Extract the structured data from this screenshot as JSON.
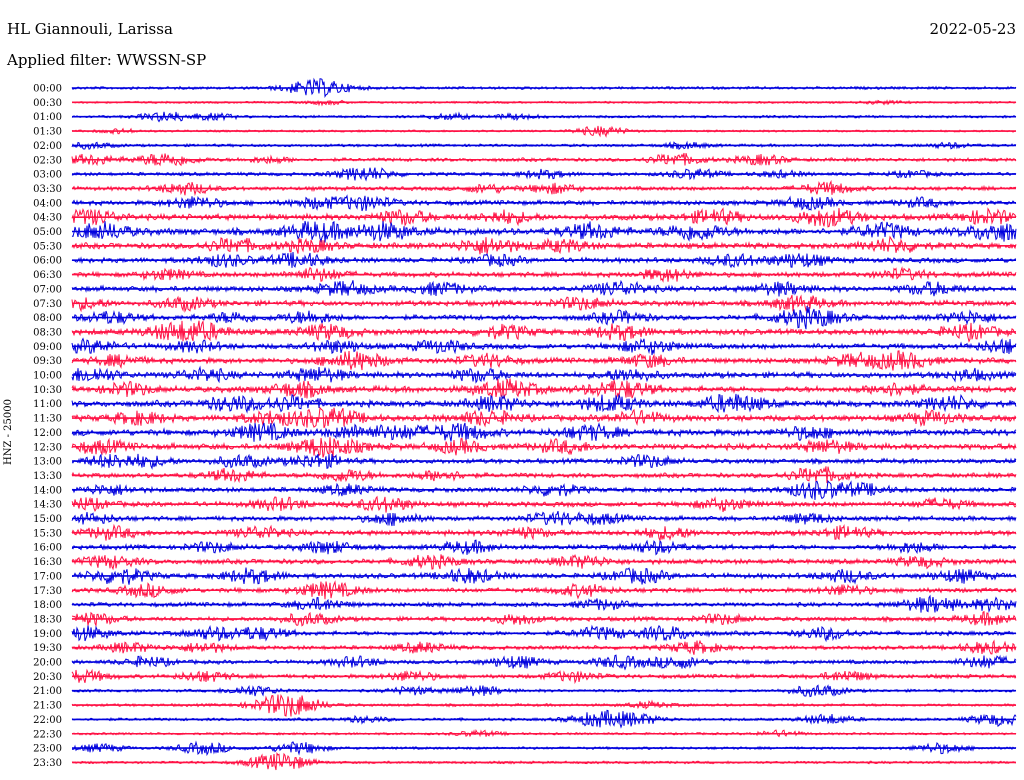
{
  "header": {
    "station": "HL Giannouli, Larissa",
    "date": "2022-05-23",
    "filter": "Applied filter: WWSSN-SP"
  },
  "chart_data": {
    "type": "line",
    "title": "HL Giannouli, Larissa",
    "ylabel": "HNZ - 25000",
    "line_colors": [
      "#0000dd",
      "#ff1144"
    ],
    "rows": [
      {
        "label": "00:00",
        "activity": 0.15,
        "events": [
          [
            0.26,
            0.9
          ]
        ]
      },
      {
        "label": "00:30",
        "activity": 0.05,
        "events": [
          [
            0.27,
            0.2
          ],
          [
            0.86,
            0.15
          ]
        ]
      },
      {
        "label": "01:00",
        "activity": 0.12,
        "events": [
          [
            0.1,
            0.5
          ],
          [
            0.15,
            0.3
          ],
          [
            0.4,
            0.3
          ],
          [
            0.47,
            0.25
          ]
        ]
      },
      {
        "label": "01:30",
        "activity": 0.05,
        "events": [
          [
            0.05,
            0.2
          ],
          [
            0.56,
            0.5
          ]
        ]
      },
      {
        "label": "02:00",
        "activity": 0.15,
        "events": [
          [
            0.02,
            0.3
          ],
          [
            0.65,
            0.3
          ],
          [
            0.93,
            0.25
          ]
        ]
      },
      {
        "label": "02:30",
        "activity": 0.25,
        "events": [
          [
            0.02,
            0.5
          ],
          [
            0.1,
            0.7
          ],
          [
            0.21,
            0.3
          ],
          [
            0.64,
            0.6
          ],
          [
            0.73,
            0.5
          ]
        ]
      },
      {
        "label": "03:00",
        "activity": 0.25,
        "events": [
          [
            0.31,
            0.7
          ],
          [
            0.5,
            0.4
          ],
          [
            0.66,
            0.5
          ],
          [
            0.75,
            0.3
          ],
          [
            0.89,
            0.3
          ]
        ]
      },
      {
        "label": "03:30",
        "activity": 0.3,
        "events": [
          [
            0.12,
            0.6
          ],
          [
            0.44,
            0.4
          ],
          [
            0.51,
            0.5
          ],
          [
            0.8,
            0.6
          ]
        ]
      },
      {
        "label": "04:00",
        "activity": 0.4,
        "events": [
          [
            0.13,
            0.6
          ],
          [
            0.26,
            0.5
          ],
          [
            0.31,
            0.7
          ],
          [
            0.78,
            0.6
          ],
          [
            0.9,
            0.4
          ]
        ]
      },
      {
        "label": "04:30",
        "activity": 0.55,
        "events": [
          [
            0.02,
            0.7
          ],
          [
            0.35,
            0.7
          ],
          [
            0.46,
            0.6
          ],
          [
            0.68,
            0.7
          ],
          [
            0.8,
            0.9
          ],
          [
            0.97,
            0.7
          ]
        ]
      },
      {
        "label": "05:00",
        "activity": 0.7,
        "events": [
          [
            0.03,
            0.8
          ],
          [
            0.26,
            0.9
          ],
          [
            0.33,
            0.8
          ],
          [
            0.55,
            0.7
          ],
          [
            0.66,
            0.8
          ],
          [
            0.86,
            0.7
          ],
          [
            0.98,
            0.9
          ]
        ]
      },
      {
        "label": "05:30",
        "activity": 0.55,
        "events": [
          [
            0.17,
            0.7
          ],
          [
            0.25,
            0.6
          ],
          [
            0.44,
            0.8
          ],
          [
            0.52,
            0.6
          ],
          [
            0.87,
            0.7
          ]
        ]
      },
      {
        "label": "06:00",
        "activity": 0.45,
        "events": [
          [
            0.16,
            0.6
          ],
          [
            0.24,
            0.7
          ],
          [
            0.45,
            0.5
          ],
          [
            0.7,
            0.6
          ],
          [
            0.77,
            0.7
          ]
        ]
      },
      {
        "label": "06:30",
        "activity": 0.45,
        "events": [
          [
            0.1,
            0.5
          ],
          [
            0.26,
            0.6
          ],
          [
            0.63,
            0.6
          ],
          [
            0.88,
            0.5
          ]
        ]
      },
      {
        "label": "07:00",
        "activity": 0.5,
        "events": [
          [
            0.29,
            0.7
          ],
          [
            0.39,
            0.6
          ],
          [
            0.58,
            0.7
          ],
          [
            0.75,
            0.6
          ],
          [
            0.91,
            0.6
          ]
        ]
      },
      {
        "label": "07:30",
        "activity": 0.5,
        "events": [
          [
            0.01,
            0.5
          ],
          [
            0.12,
            0.6
          ],
          [
            0.54,
            0.6
          ],
          [
            0.77,
            0.7
          ]
        ]
      },
      {
        "label": "08:00",
        "activity": 0.45,
        "events": [
          [
            0.04,
            0.6
          ],
          [
            0.17,
            0.5
          ],
          [
            0.25,
            0.6
          ],
          [
            0.58,
            0.6
          ],
          [
            0.78,
            1.0
          ],
          [
            0.95,
            0.6
          ]
        ]
      },
      {
        "label": "08:30",
        "activity": 0.55,
        "events": [
          [
            0.11,
            0.8
          ],
          [
            0.14,
            0.6
          ],
          [
            0.27,
            0.7
          ],
          [
            0.46,
            0.6
          ],
          [
            0.58,
            0.7
          ],
          [
            0.95,
            0.7
          ]
        ]
      },
      {
        "label": "09:00",
        "activity": 0.5,
        "events": [
          [
            0.02,
            0.6
          ],
          [
            0.13,
            0.5
          ],
          [
            0.28,
            0.6
          ],
          [
            0.39,
            0.6
          ],
          [
            0.61,
            0.7
          ],
          [
            0.99,
            0.7
          ]
        ]
      },
      {
        "label": "09:30",
        "activity": 0.5,
        "events": [
          [
            0.05,
            0.5
          ],
          [
            0.3,
            0.9
          ],
          [
            0.44,
            0.6
          ],
          [
            0.61,
            0.6
          ],
          [
            0.83,
            0.6
          ],
          [
            0.88,
            0.8
          ]
        ]
      },
      {
        "label": "10:00",
        "activity": 0.55,
        "events": [
          [
            0.02,
            0.7
          ],
          [
            0.14,
            0.6
          ],
          [
            0.26,
            0.7
          ],
          [
            0.43,
            0.6
          ],
          [
            0.59,
            0.6
          ],
          [
            0.95,
            0.5
          ]
        ]
      },
      {
        "label": "10:30",
        "activity": 0.6,
        "events": [
          [
            0.06,
            0.6
          ],
          [
            0.24,
            0.7
          ],
          [
            0.46,
            0.9
          ],
          [
            0.58,
            0.9
          ],
          [
            0.87,
            0.6
          ]
        ]
      },
      {
        "label": "11:00",
        "activity": 0.6,
        "events": [
          [
            0.17,
            0.7
          ],
          [
            0.23,
            0.7
          ],
          [
            0.45,
            0.7
          ],
          [
            0.57,
            0.8
          ],
          [
            0.7,
            0.9
          ],
          [
            0.93,
            0.7
          ]
        ]
      },
      {
        "label": "11:30",
        "activity": 0.6,
        "events": [
          [
            0.07,
            0.6
          ],
          [
            0.21,
            0.6
          ],
          [
            0.27,
            1.0
          ],
          [
            0.44,
            0.7
          ],
          [
            0.6,
            0.6
          ],
          [
            0.91,
            0.6
          ]
        ]
      },
      {
        "label": "12:00",
        "activity": 0.65,
        "events": [
          [
            0.2,
            0.8
          ],
          [
            0.3,
            0.6
          ],
          [
            0.35,
            0.6
          ],
          [
            0.41,
            0.8
          ],
          [
            0.55,
            0.7
          ],
          [
            0.78,
            0.6
          ]
        ]
      },
      {
        "label": "12:30",
        "activity": 0.6,
        "events": [
          [
            0.03,
            0.6
          ],
          [
            0.27,
            1.0
          ],
          [
            0.41,
            0.6
          ],
          [
            0.52,
            0.6
          ],
          [
            0.8,
            0.6
          ]
        ]
      },
      {
        "label": "13:00",
        "activity": 0.4,
        "events": [
          [
            0.04,
            0.6
          ],
          [
            0.08,
            0.5
          ],
          [
            0.18,
            0.6
          ],
          [
            0.26,
            0.7
          ],
          [
            0.61,
            0.6
          ]
        ]
      },
      {
        "label": "13:30",
        "activity": 0.4,
        "events": [
          [
            0.17,
            0.6
          ],
          [
            0.29,
            0.6
          ],
          [
            0.39,
            0.5
          ],
          [
            0.79,
            0.8
          ]
        ]
      },
      {
        "label": "14:00",
        "activity": 0.4,
        "events": [
          [
            0.04,
            0.5
          ],
          [
            0.29,
            0.5
          ],
          [
            0.51,
            0.6
          ],
          [
            0.79,
            0.9
          ],
          [
            0.84,
            0.5
          ]
        ]
      },
      {
        "label": "14:30",
        "activity": 0.45,
        "events": [
          [
            0.01,
            0.6
          ],
          [
            0.22,
            0.6
          ],
          [
            0.33,
            0.7
          ],
          [
            0.69,
            0.6
          ],
          [
            0.92,
            0.5
          ]
        ]
      },
      {
        "label": "15:00",
        "activity": 0.4,
        "events": [
          [
            0.02,
            0.5
          ],
          [
            0.34,
            0.6
          ],
          [
            0.51,
            0.6
          ],
          [
            0.56,
            0.5
          ],
          [
            0.78,
            0.5
          ]
        ]
      },
      {
        "label": "15:30",
        "activity": 0.45,
        "events": [
          [
            0.04,
            0.6
          ],
          [
            0.2,
            0.6
          ],
          [
            0.48,
            0.5
          ],
          [
            0.63,
            0.6
          ],
          [
            0.82,
            0.6
          ]
        ]
      },
      {
        "label": "16:00",
        "activity": 0.4,
        "events": [
          [
            0.15,
            0.5
          ],
          [
            0.27,
            0.6
          ],
          [
            0.42,
            0.6
          ],
          [
            0.62,
            0.6
          ],
          [
            0.89,
            0.5
          ]
        ]
      },
      {
        "label": "16:30",
        "activity": 0.45,
        "events": [
          [
            0.04,
            0.6
          ],
          [
            0.38,
            0.6
          ],
          [
            0.54,
            0.6
          ],
          [
            0.9,
            0.5
          ]
        ]
      },
      {
        "label": "17:00",
        "activity": 0.45,
        "events": [
          [
            0.05,
            0.8
          ],
          [
            0.19,
            0.7
          ],
          [
            0.42,
            0.7
          ],
          [
            0.6,
            0.7
          ],
          [
            0.82,
            0.6
          ],
          [
            0.94,
            0.6
          ]
        ]
      },
      {
        "label": "17:30",
        "activity": 0.4,
        "events": [
          [
            0.08,
            0.6
          ],
          [
            0.27,
            0.8
          ],
          [
            0.54,
            0.6
          ],
          [
            0.82,
            0.5
          ]
        ]
      },
      {
        "label": "18:00",
        "activity": 0.35,
        "events": [
          [
            0.26,
            0.6
          ],
          [
            0.56,
            0.5
          ],
          [
            0.91,
            0.8
          ],
          [
            0.98,
            0.6
          ]
        ]
      },
      {
        "label": "18:30",
        "activity": 0.35,
        "events": [
          [
            0.02,
            0.6
          ],
          [
            0.25,
            0.6
          ],
          [
            0.47,
            0.5
          ],
          [
            0.69,
            0.5
          ],
          [
            0.97,
            0.6
          ]
        ]
      },
      {
        "label": "19:00",
        "activity": 0.35,
        "events": [
          [
            0.01,
            0.7
          ],
          [
            0.15,
            0.6
          ],
          [
            0.2,
            0.6
          ],
          [
            0.56,
            0.6
          ],
          [
            0.63,
            0.7
          ],
          [
            0.8,
            0.6
          ]
        ]
      },
      {
        "label": "19:30",
        "activity": 0.3,
        "events": [
          [
            0.06,
            0.5
          ],
          [
            0.14,
            0.5
          ],
          [
            0.37,
            0.5
          ],
          [
            0.66,
            0.6
          ],
          [
            0.97,
            0.6
          ]
        ]
      },
      {
        "label": "20:00",
        "activity": 0.3,
        "events": [
          [
            0.08,
            0.5
          ],
          [
            0.3,
            0.5
          ],
          [
            0.47,
            0.6
          ],
          [
            0.58,
            0.6
          ],
          [
            0.64,
            0.6
          ],
          [
            0.97,
            0.6
          ]
        ]
      },
      {
        "label": "20:30",
        "activity": 0.3,
        "events": [
          [
            0.01,
            0.6
          ],
          [
            0.14,
            0.5
          ],
          [
            0.36,
            0.5
          ],
          [
            0.53,
            0.5
          ],
          [
            0.82,
            0.5
          ]
        ]
      },
      {
        "label": "21:00",
        "activity": 0.15,
        "events": [
          [
            0.19,
            0.5
          ],
          [
            0.36,
            0.4
          ],
          [
            0.43,
            0.5
          ],
          [
            0.79,
            0.6
          ]
        ]
      },
      {
        "label": "21:30",
        "activity": 0.15,
        "events": [
          [
            0.22,
            0.8
          ],
          [
            0.24,
            0.6
          ],
          [
            0.61,
            0.3
          ]
        ]
      },
      {
        "label": "22:00",
        "activity": 0.15,
        "events": [
          [
            0.31,
            0.3
          ],
          [
            0.56,
            0.8
          ],
          [
            0.6,
            0.5
          ],
          [
            0.8,
            0.5
          ],
          [
            0.98,
            0.6
          ]
        ]
      },
      {
        "label": "22:30",
        "activity": 0.08,
        "events": [
          [
            0.43,
            0.3
          ],
          [
            0.75,
            0.3
          ]
        ]
      },
      {
        "label": "23:00",
        "activity": 0.12,
        "events": [
          [
            0.03,
            0.4
          ],
          [
            0.14,
            0.6
          ],
          [
            0.24,
            0.6
          ],
          [
            0.92,
            0.5
          ]
        ]
      },
      {
        "label": "23:30",
        "activity": 0.12,
        "events": [
          [
            0.21,
            0.6
          ],
          [
            0.23,
            0.5
          ]
        ]
      }
    ]
  }
}
